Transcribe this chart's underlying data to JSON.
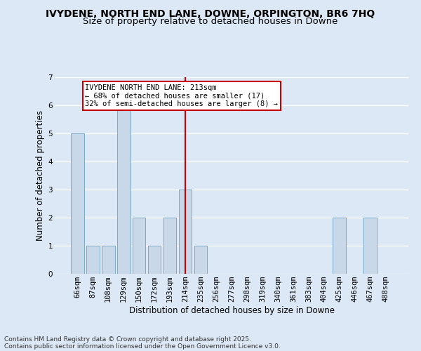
{
  "title_line1": "IVYDENE, NORTH END LANE, DOWNE, ORPINGTON, BR6 7HQ",
  "title_line2": "Size of property relative to detached houses in Downe",
  "xlabel": "Distribution of detached houses by size in Downe",
  "ylabel": "Number of detached properties",
  "footer_line1": "Contains HM Land Registry data © Crown copyright and database right 2025.",
  "footer_line2": "Contains public sector information licensed under the Open Government Licence v3.0.",
  "categories": [
    "66sqm",
    "87sqm",
    "108sqm",
    "129sqm",
    "150sqm",
    "172sqm",
    "193sqm",
    "214sqm",
    "235sqm",
    "256sqm",
    "277sqm",
    "298sqm",
    "319sqm",
    "340sqm",
    "361sqm",
    "383sqm",
    "404sqm",
    "425sqm",
    "446sqm",
    "467sqm",
    "488sqm"
  ],
  "values": [
    5,
    1,
    1,
    6,
    2,
    1,
    2,
    3,
    1,
    0,
    0,
    0,
    0,
    0,
    0,
    0,
    0,
    2,
    0,
    2,
    0
  ],
  "bar_color": "#c8d8e8",
  "bar_edge_color": "#7aaac8",
  "reference_line_index": 7,
  "reference_line_color": "#cc0000",
  "annotation_text": "IVYDENE NORTH END LANE: 213sqm\n← 68% of detached houses are smaller (17)\n32% of semi-detached houses are larger (8) →",
  "annotation_box_color": "#ffffff",
  "annotation_box_edge_color": "#cc0000",
  "ylim": [
    0,
    7
  ],
  "yticks": [
    0,
    1,
    2,
    3,
    4,
    5,
    6,
    7
  ],
  "bg_color": "#dce8f5",
  "grid_color": "#ffffff",
  "title_fontsize": 10,
  "subtitle_fontsize": 9.5,
  "axis_label_fontsize": 8.5,
  "tick_fontsize": 7.5,
  "annotation_fontsize": 7.5,
  "footer_fontsize": 6.5
}
